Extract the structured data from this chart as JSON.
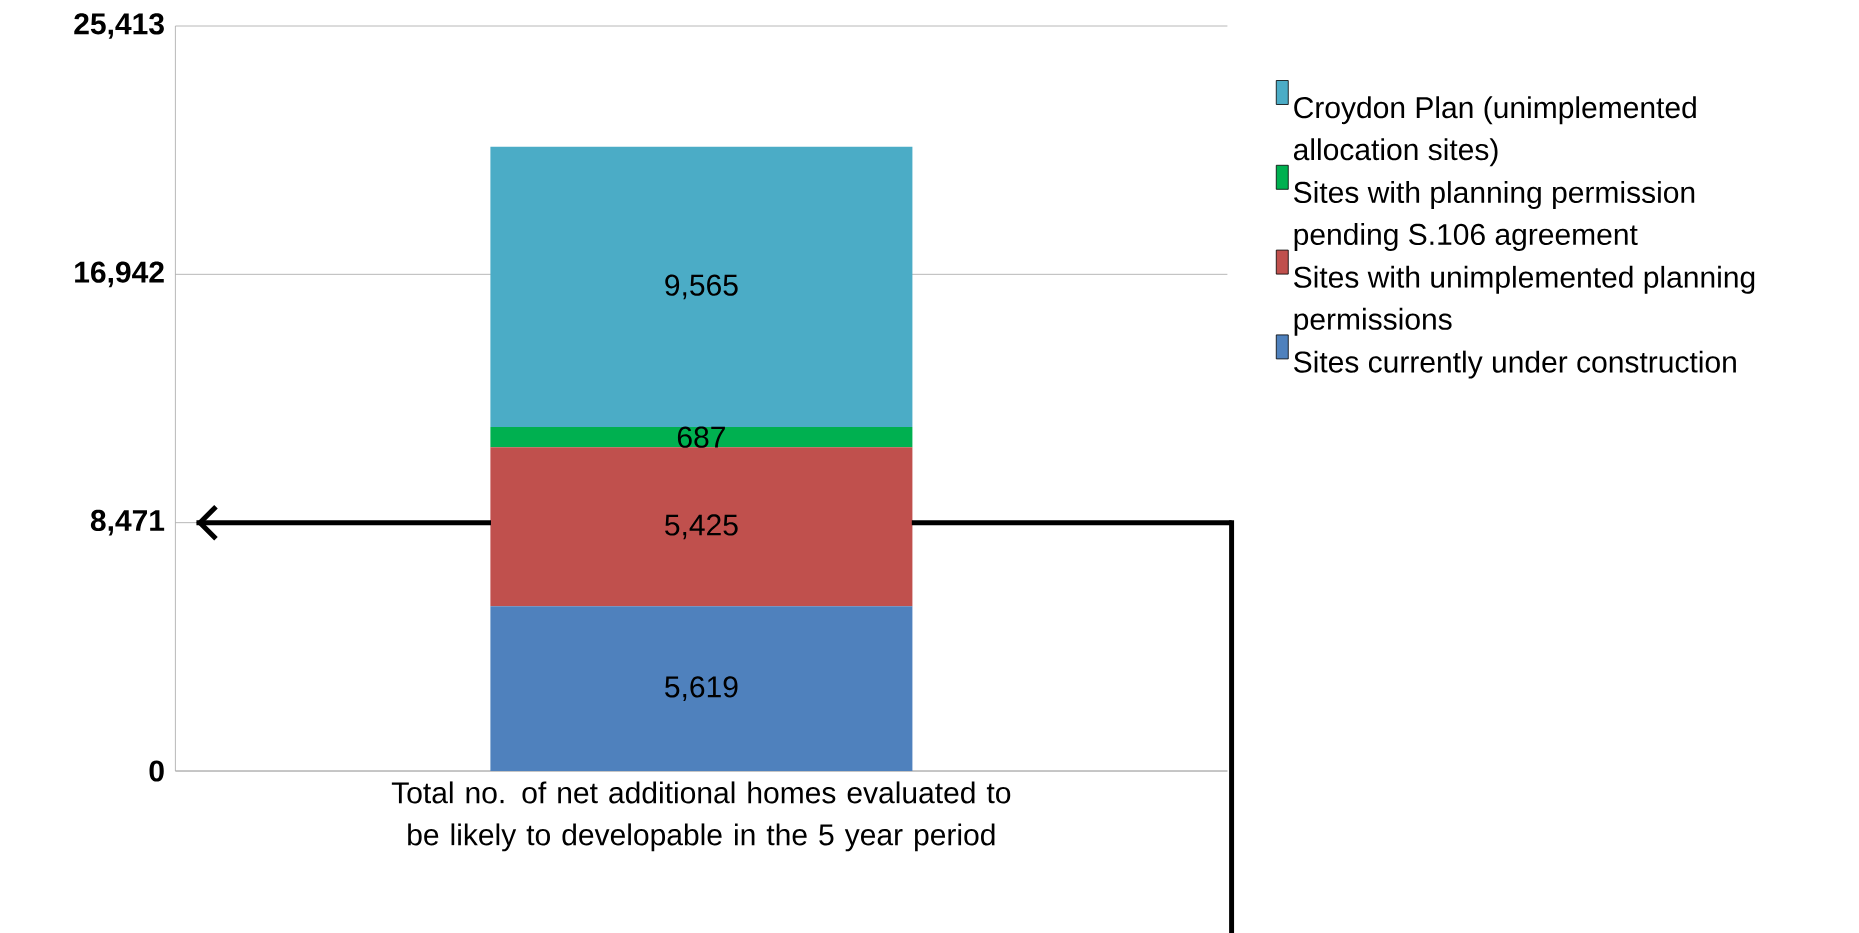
{
  "chart_data": {
    "type": "bar",
    "stacked": true,
    "categories": [
      "Total no. of net additional homes evaluated to be likely to developable in the 5 year period"
    ],
    "series": [
      {
        "name": "Sites currently under construction",
        "color": "#4f81bd",
        "values": [
          5619
        ],
        "value_labels": [
          "5,619"
        ]
      },
      {
        "name": "Sites with unimplemented planning permissions",
        "color": "#c0504d",
        "values": [
          5425
        ],
        "value_labels": [
          "5,425"
        ]
      },
      {
        "name": "Sites with planning permission pending S.106 agreement",
        "color": "#00b050",
        "values": [
          687
        ],
        "value_labels": [
          "687"
        ]
      },
      {
        "name": "Croydon Plan (unimplemented allocation sites)",
        "color": "#4bacc6",
        "values": [
          9565
        ],
        "value_labels": [
          "9,565"
        ]
      }
    ],
    "ylim": [
      0,
      25413
    ],
    "yticks": [
      0,
      {
        "value": 8471,
        "label": "8,471"
      },
      {
        "value": 16942,
        "label": "16,942"
      },
      {
        "value": 25413,
        "label": "25,413"
      }
    ],
    "grid": "y",
    "legend": "right",
    "ref_lines": [
      {
        "axis": "y",
        "value": 8471,
        "color": "#000000"
      }
    ]
  }
}
